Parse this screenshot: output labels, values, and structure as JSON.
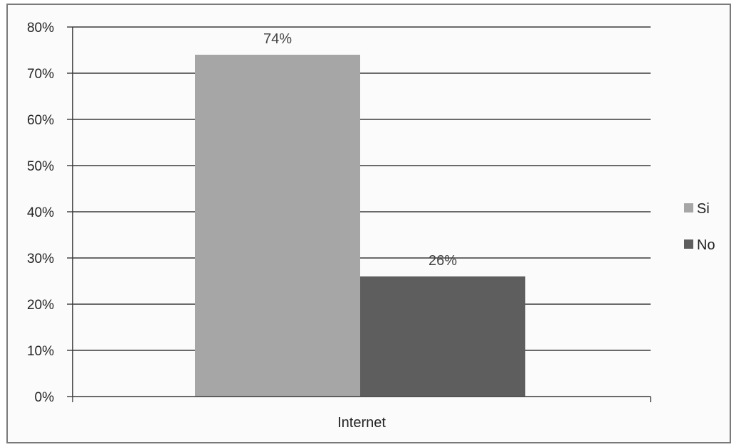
{
  "chart_data": {
    "type": "bar",
    "categories": [
      "Internet"
    ],
    "series": [
      {
        "name": "Si",
        "values": [
          74
        ],
        "color": "#a6a6a6",
        "label": "74%"
      },
      {
        "name": "No",
        "values": [
          26
        ],
        "color": "#5e5e5e",
        "label": "26%"
      }
    ],
    "title": "",
    "xlabel": "",
    "ylabel": "",
    "ylim": [
      0,
      80
    ],
    "yticks": [
      "0%",
      "10%",
      "20%",
      "30%",
      "40%",
      "50%",
      "60%",
      "70%",
      "80%"
    ],
    "grid": true,
    "legend_position": "right",
    "gridline_color": "#3a3a3a"
  }
}
